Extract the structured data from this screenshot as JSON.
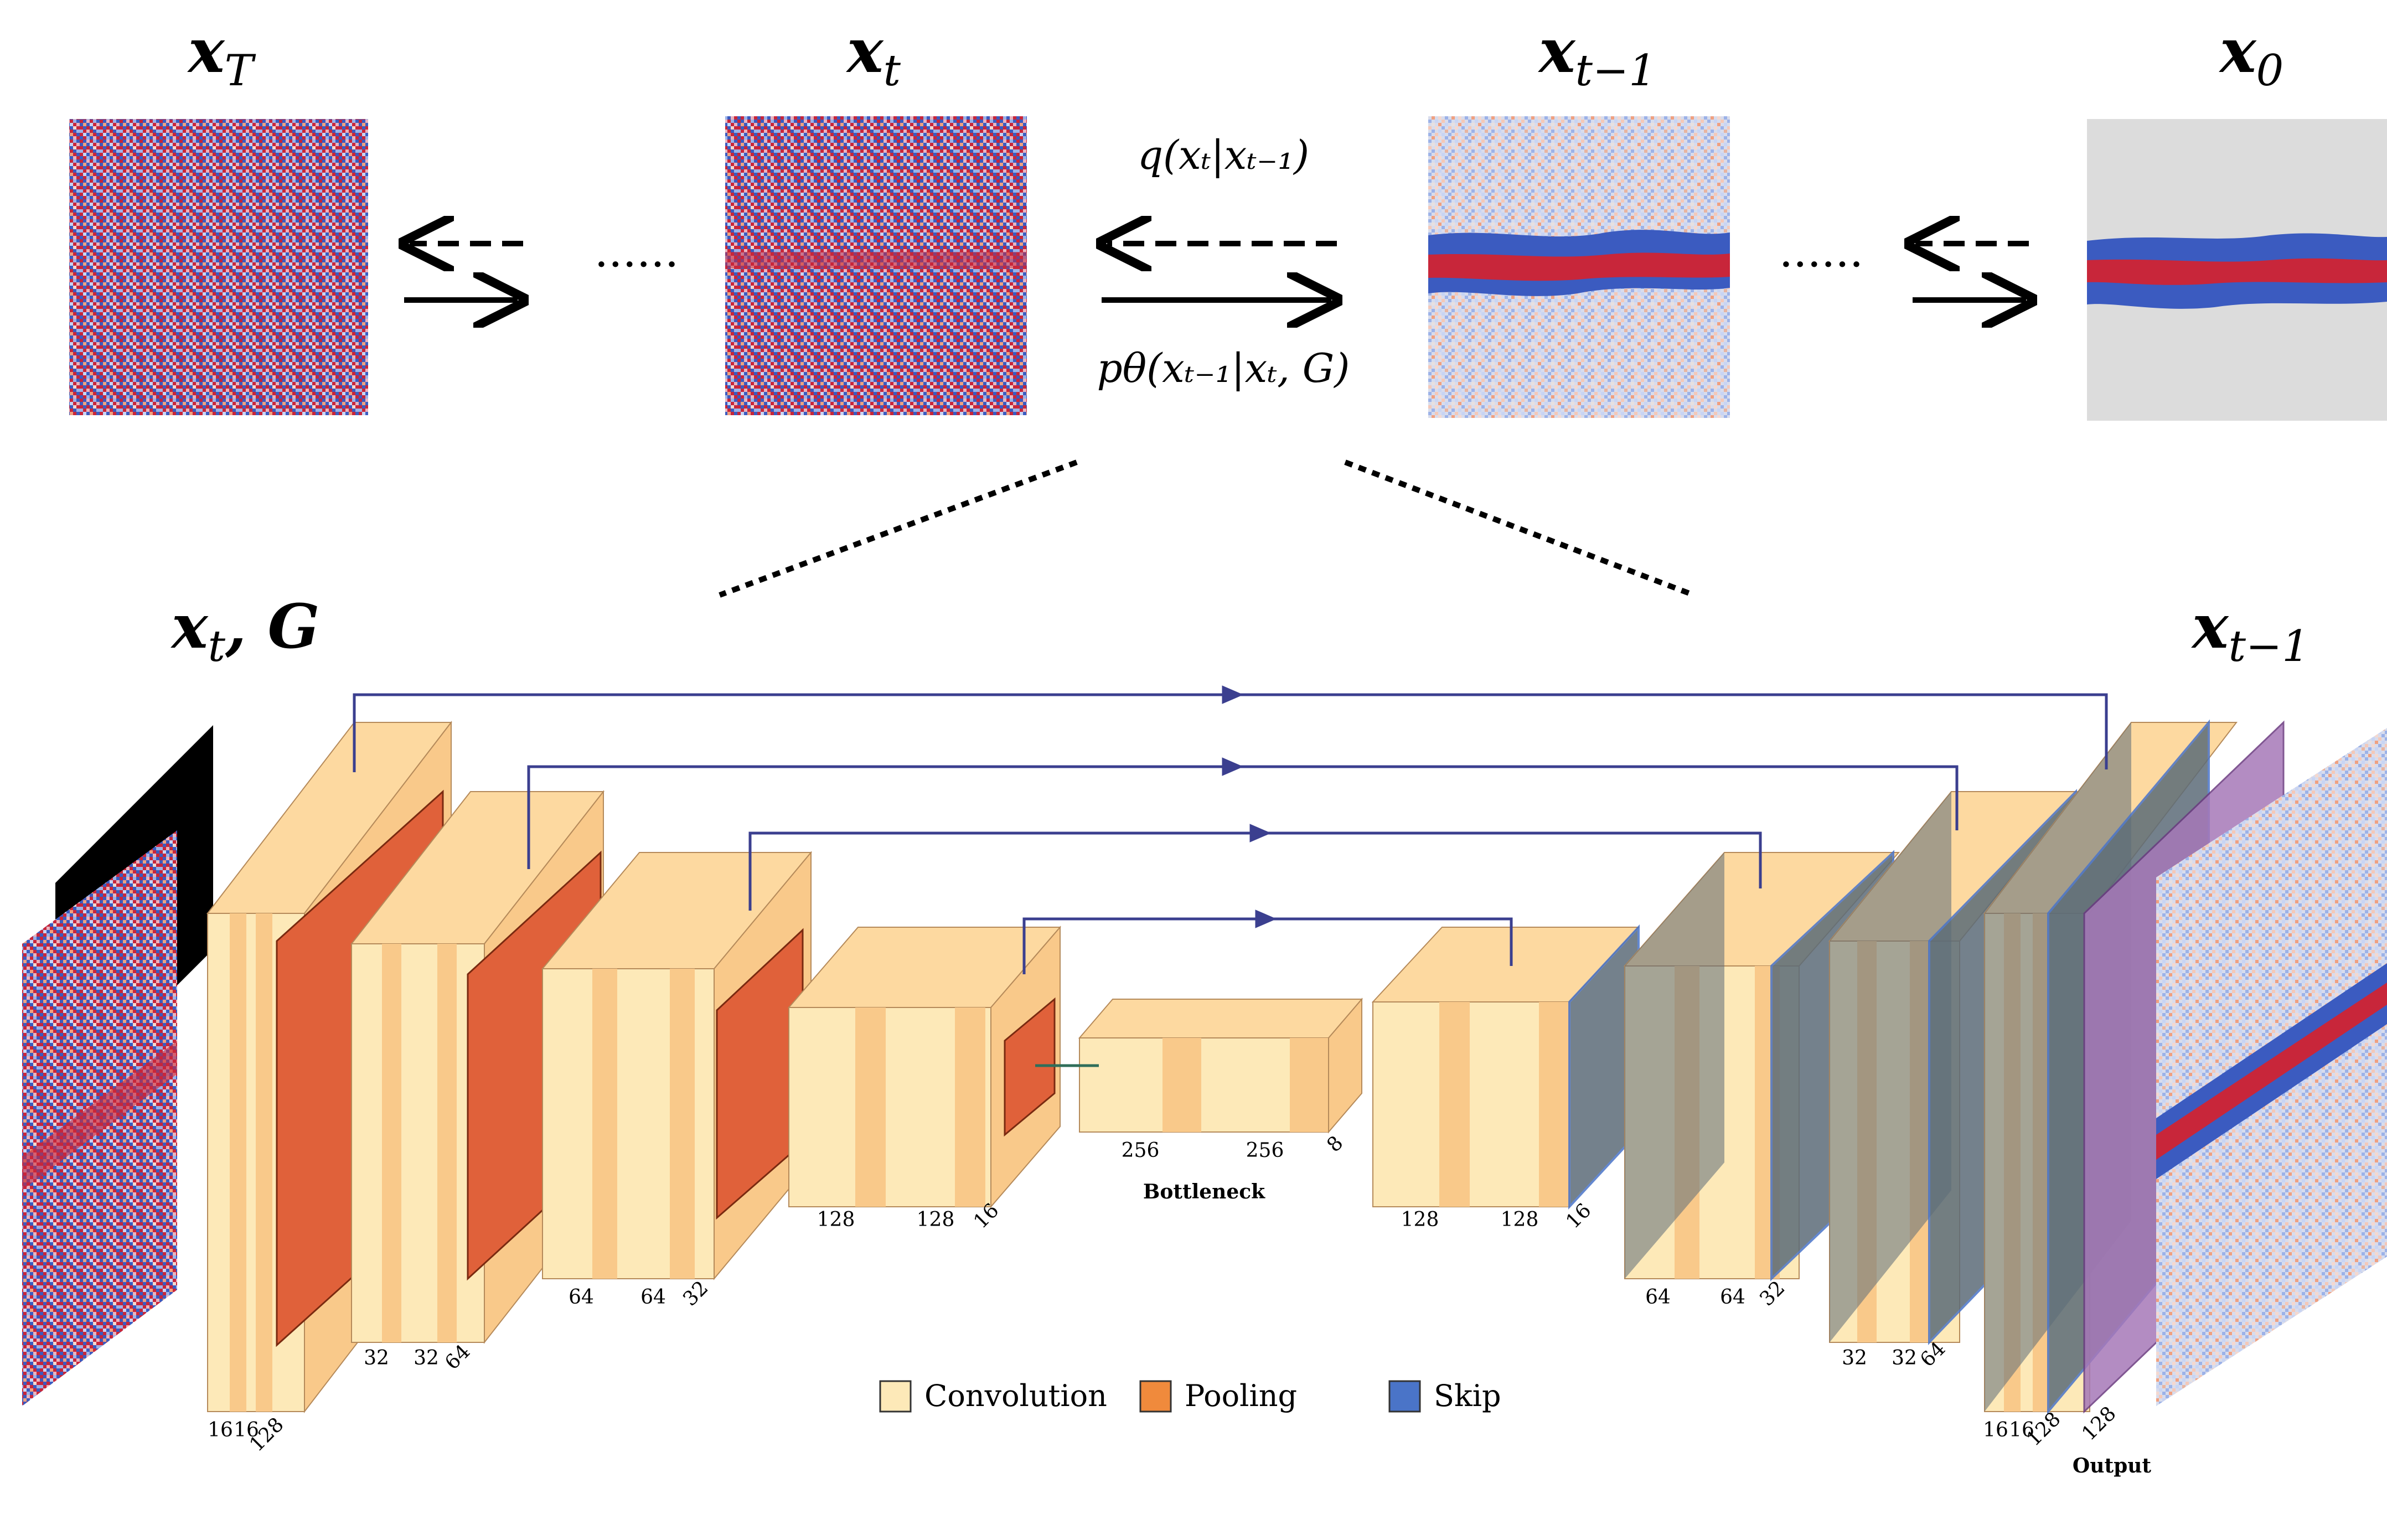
{
  "top_states": [
    {
      "base": "x",
      "sub": "T"
    },
    {
      "base": "x",
      "sub": "t"
    },
    {
      "base": "x",
      "sub": "t−1"
    },
    {
      "base": "x",
      "sub": "0"
    }
  ],
  "forward_process": "q(xₜ|xₜ₋₁)",
  "reverse_process": "pθ(xₜ₋₁|xₜ, G)",
  "ellipsis": "······",
  "network_input": {
    "base": "x",
    "sub": "t",
    "extra": ", G"
  },
  "network_output": {
    "base": "x",
    "sub": "t−1"
  },
  "encoder_blocks": [
    {
      "dims": [
        "16",
        "16",
        "128"
      ]
    },
    {
      "dims": [
        "32",
        "32",
        "64"
      ]
    },
    {
      "dims": [
        "64",
        "64",
        "32"
      ]
    },
    {
      "dims": [
        "128",
        "128",
        "16"
      ]
    }
  ],
  "bottleneck": {
    "dims": [
      "256",
      "256",
      "8"
    ],
    "label": "Bottleneck"
  },
  "decoder_blocks": [
    {
      "dims": [
        "128",
        "128",
        "16"
      ]
    },
    {
      "dims": [
        "64",
        "64",
        "32"
      ]
    },
    {
      "dims": [
        "32",
        "32",
        "64"
      ]
    },
    {
      "dims": [
        "16",
        "16",
        "128"
      ]
    }
  ],
  "output_block": {
    "dim": "128",
    "label": "Output"
  },
  "legend": [
    {
      "label": "Convolution",
      "color": "#fde9b8"
    },
    {
      "label": "Pooling",
      "color": "#f08a3c"
    },
    {
      "label": "Skip",
      "color": "#4a74c8"
    }
  ],
  "colors": {
    "conv": "#fde9b8",
    "conv_dark": "#f9c98a",
    "pool": "#e0613a",
    "skip": "#4a74c8",
    "output": "#a678b8",
    "skip_line": "#3b3f8f",
    "noise_red": "#c8263a",
    "noise_blue": "#3b5bc0"
  }
}
